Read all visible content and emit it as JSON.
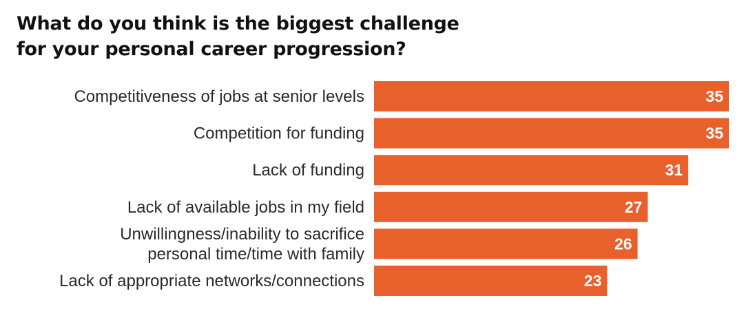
{
  "chart_data": {
    "type": "bar",
    "orientation": "horizontal",
    "title_lines": [
      "What do you think is the biggest challenge",
      "for your personal career progression?"
    ],
    "categories": [
      [
        "Competitiveness of jobs at senior levels"
      ],
      [
        "Competition for funding"
      ],
      [
        "Lack of funding"
      ],
      [
        "Lack of available jobs in my field"
      ],
      [
        "Unwillingness/inability to sacrifice",
        "personal time/time with family"
      ],
      [
        "Lack of appropriate networks/connections"
      ]
    ],
    "values": [
      35,
      35,
      31,
      27,
      26,
      23
    ],
    "value_labels": [
      "35",
      "35",
      "31",
      "27",
      "26",
      "23"
    ],
    "xlim": [
      0,
      35
    ],
    "grid": false,
    "legend": "none",
    "bar_color": "#E8602C",
    "value_label_color": "#FFFFFF"
  }
}
